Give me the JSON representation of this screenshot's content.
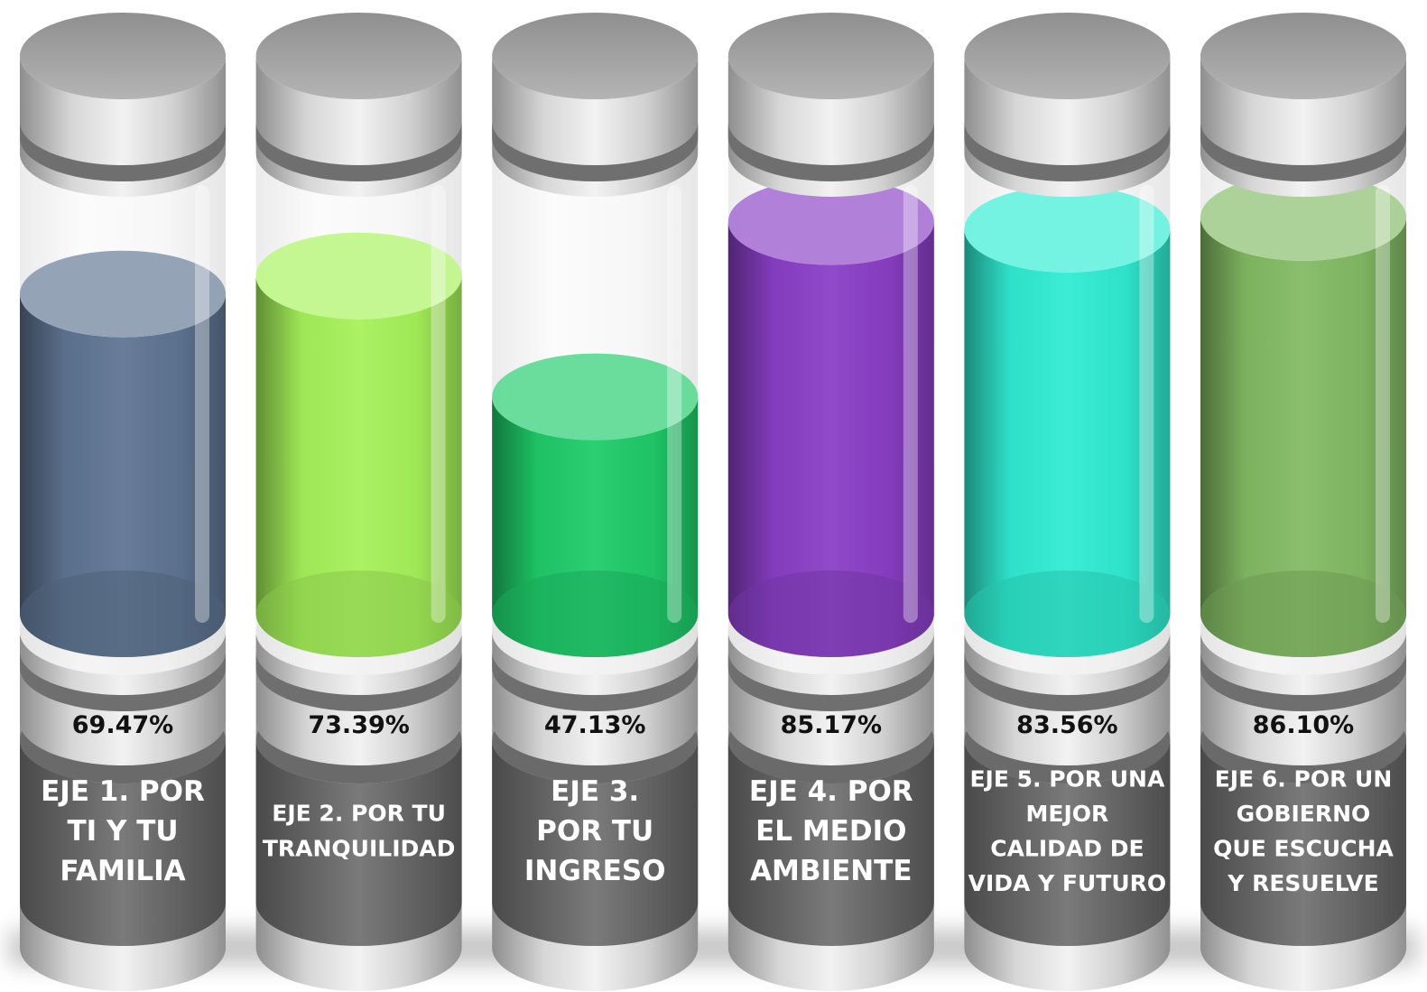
{
  "chart_data": {
    "type": "bar",
    "categories": [
      "EJE 1. POR TI Y TU FAMILIA",
      "EJE 2. POR TU TRANQUILIDAD",
      "EJE 3. POR TU INGRESO",
      "EJE 4. POR EL MEDIO AMBIENTE",
      "EJE 5. POR UNA MEJOR CALIDAD DE VIDA Y FUTURO",
      "EJE 6. POR UN GOBIERNO QUE ESCUCHA Y RESUELVE"
    ],
    "label_lines": [
      [
        "EJE 1. POR",
        "TI Y TU",
        "FAMILIA"
      ],
      [
        "EJE 2. POR TU",
        "TRANQUILIDAD"
      ],
      [
        "EJE 3.",
        "POR TU",
        "INGRESO"
      ],
      [
        "EJE 4. POR",
        "EL MEDIO",
        "AMBIENTE"
      ],
      [
        "EJE 5. POR UNA",
        "MEJOR",
        "CALIDAD DE",
        "VIDA Y FUTURO"
      ],
      [
        "EJE 6. POR UN",
        "GOBIERNO",
        "QUE ESCUCHA",
        "Y RESUELVE"
      ]
    ],
    "values": [
      69.47,
      73.39,
      47.13,
      85.17,
      83.56,
      86.1
    ],
    "value_labels": [
      "69.47%",
      "73.39%",
      "47.13%",
      "85.17%",
      "83.56%",
      "86.10%"
    ],
    "unit": "%",
    "colors": [
      "#5f7593",
      "#a6f25a",
      "#1fcc6a",
      "#8a3fc6",
      "#30ecd2",
      "#83bb64"
    ],
    "title": "",
    "xlabel": "",
    "ylabel": "",
    "ylim": [
      0,
      100
    ],
    "grid": false,
    "legend": "none"
  }
}
